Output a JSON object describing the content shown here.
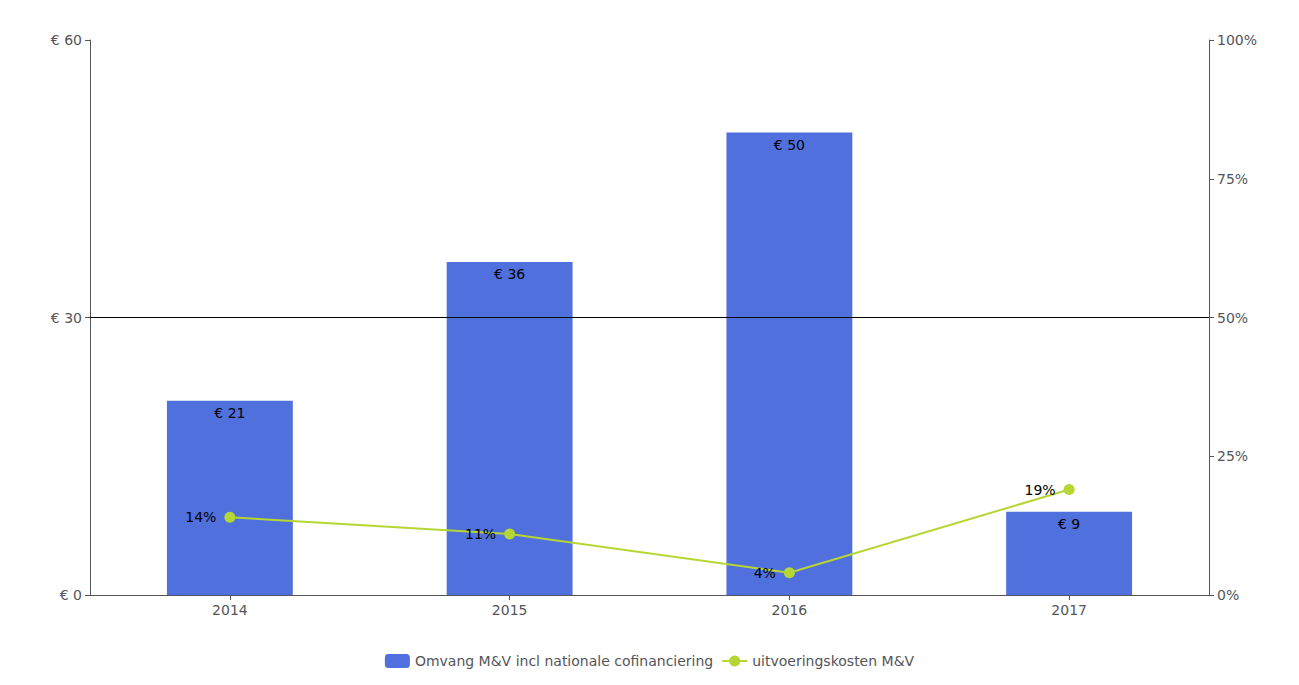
{
  "chart_data": {
    "type": "bar",
    "categories": [
      "2014",
      "2015",
      "2016",
      "2017"
    ],
    "series": [
      {
        "name": "Omvang M&V incl nationale cofinanciering",
        "type": "bar",
        "values": [
          21,
          36,
          50,
          9
        ],
        "value_labels": [
          "€ 21",
          "€ 36",
          "€ 50",
          "€ 9"
        ]
      },
      {
        "name": "uitvoeringskosten M&V",
        "type": "line",
        "axis": "y2",
        "marker": "circle",
        "values": [
          0.14,
          0.11,
          0.04,
          0.19
        ],
        "value_labels": [
          "14%",
          "11%",
          "4%",
          "19%"
        ]
      }
    ],
    "ylim": [
      0,
      60
    ],
    "yticks": [
      {
        "value": 0,
        "label": "€ 0"
      },
      {
        "value": 30,
        "label": "€ 30"
      },
      {
        "value": 60,
        "label": "€ 60"
      }
    ],
    "y2lim": [
      0,
      1.0
    ],
    "y2ticks": [
      {
        "value": 0,
        "label": "0%"
      },
      {
        "value": 0.25,
        "label": "25%"
      },
      {
        "value": 0.5,
        "label": "50%"
      },
      {
        "value": 0.75,
        "label": "75%"
      },
      {
        "value": 1.0,
        "label": "100%"
      }
    ],
    "hline": 30,
    "data_labels": true,
    "legend": "bottom",
    "grid": false
  }
}
